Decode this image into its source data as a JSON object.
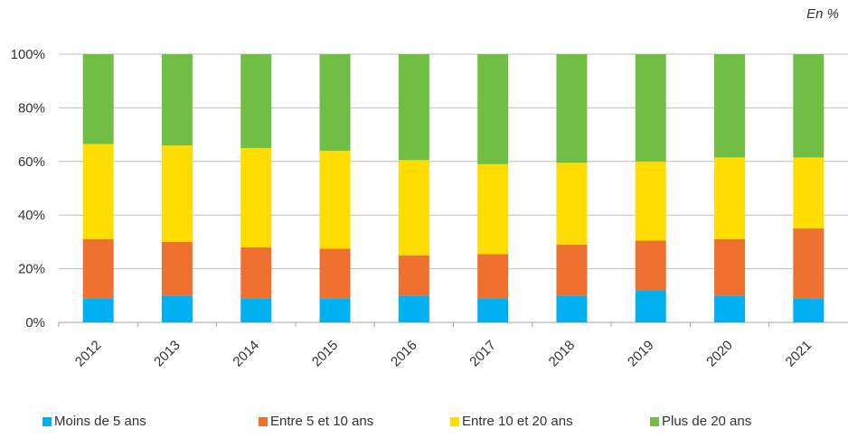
{
  "unit_label": "En %",
  "colors": {
    "moins5": "#00B0F0",
    "entre5_10": "#F07030",
    "entre10_20": "#FFDD00",
    "plus20": "#70BF44",
    "grid": "#BFBFBF",
    "axis_text": "#333333"
  },
  "chart_data": {
    "type": "bar",
    "stacked": true,
    "categories": [
      "2012",
      "2013",
      "2014",
      "2015",
      "2016",
      "2017",
      "2018",
      "2019",
      "2020",
      "2021"
    ],
    "series": [
      {
        "name": "Moins de 5 ans",
        "color_key": "moins5",
        "values": [
          9,
          10,
          9,
          9,
          10,
          9,
          10,
          12,
          10,
          9
        ]
      },
      {
        "name": "Entre 5 et 10 ans",
        "color_key": "entre5_10",
        "values": [
          22,
          20,
          19,
          18.5,
          15,
          16.5,
          19,
          18.5,
          21,
          26
        ]
      },
      {
        "name": "Entre 10 et 20 ans",
        "color_key": "entre10_20",
        "values": [
          35.5,
          36,
          37,
          36.5,
          35.5,
          33.5,
          30.5,
          29.5,
          30.5,
          26.5
        ]
      },
      {
        "name": "Plus de 20 ans",
        "color_key": "plus20",
        "values": [
          33.5,
          34,
          35,
          36,
          39.5,
          41,
          40.5,
          40,
          38.5,
          38.5
        ]
      }
    ],
    "yticks": [
      "0%",
      "20%",
      "40%",
      "60%",
      "80%",
      "100%"
    ],
    "ylim": [
      0,
      100
    ],
    "grid": true,
    "legend_position": "bottom",
    "xlabel": "",
    "ylabel": ""
  }
}
